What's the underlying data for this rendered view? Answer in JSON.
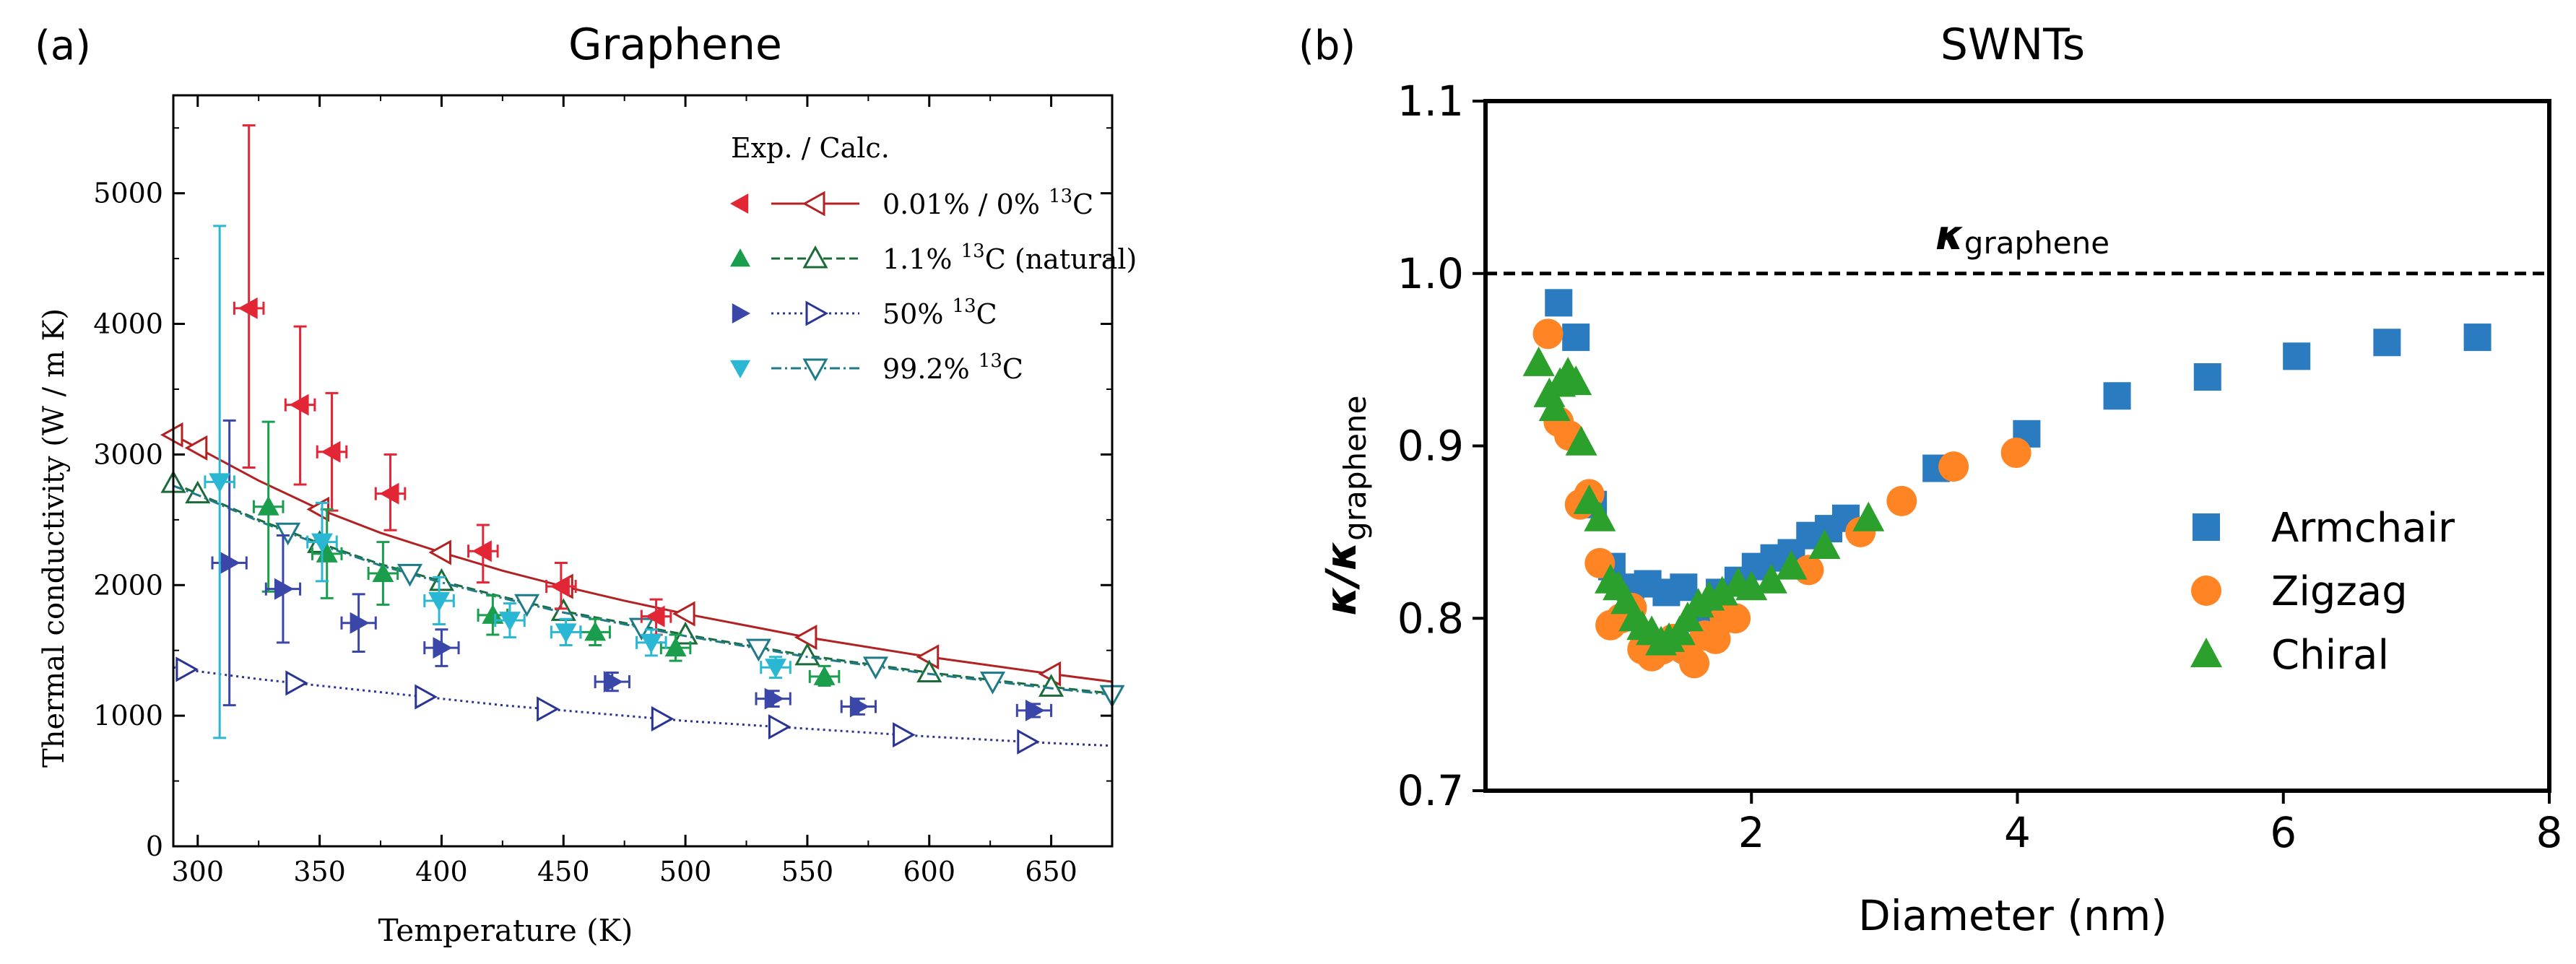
{
  "colors": {
    "natural_exp": "#1a9e4e",
    "natural_calc": "#1a6b37",
    "zero_exp": "#e32636",
    "zero_calc": "#b22222",
    "fifty_exp": "#3a46a8",
    "fifty_calc": "#2a3494",
    "enriched_exp": "#2ab7d3",
    "enriched_calc": "#1f7a88",
    "armchair": "#2a7bbf",
    "zigzag": "#ff8424",
    "chiral": "#2ca02c",
    "axes": "#000000"
  },
  "chart_data": [
    {
      "type": "scatter",
      "panel_label": "(a)",
      "title": "Graphene",
      "xlabel": "Temperature (K)",
      "ylabel": "Thermal conductivity (W / m K)",
      "xlim": [
        290,
        675
      ],
      "ylim": [
        0,
        5750
      ],
      "xticks": [
        300,
        350,
        400,
        450,
        500,
        550,
        600,
        650
      ],
      "yticks": [
        0,
        1000,
        2000,
        3000,
        4000,
        5000
      ],
      "legend": {
        "title": "Exp. / Calc.",
        "entries": [
          {
            "label": "0.01% / 0% ",
            "sup": "13",
            "suffix": "C",
            "key": "zero"
          },
          {
            "label": "1.1% ",
            "sup": "13",
            "suffix": "C (natural)",
            "key": "natural"
          },
          {
            "label": "50% ",
            "sup": "13",
            "suffix": "C",
            "key": "fifty"
          },
          {
            "label": "99.2% ",
            "sup": "13",
            "suffix": "C",
            "key": "enriched"
          }
        ]
      },
      "experiment": {
        "zero": [
          {
            "x": 321,
            "y": 4120,
            "xe": 6,
            "ylo": 2900,
            "yhi": 5520
          },
          {
            "x": 342,
            "y": 3380,
            "xe": 6,
            "ylo": 2770,
            "yhi": 3980
          },
          {
            "x": 355,
            "y": 3020,
            "xe": 6,
            "ylo": 2570,
            "yhi": 3470
          },
          {
            "x": 379,
            "y": 2700,
            "xe": 6,
            "ylo": 2420,
            "yhi": 3000
          },
          {
            "x": 417,
            "y": 2260,
            "xe": 6,
            "ylo": 2020,
            "yhi": 2460
          },
          {
            "x": 449,
            "y": 1990,
            "xe": 6,
            "ylo": 1820,
            "yhi": 2170
          },
          {
            "x": 488,
            "y": 1760,
            "xe": 6,
            "ylo": 1620,
            "yhi": 1890
          }
        ],
        "natural": [
          {
            "x": 329,
            "y": 2600,
            "xe": 6,
            "ylo": 1950,
            "yhi": 3250
          },
          {
            "x": 353,
            "y": 2240,
            "xe": 6,
            "ylo": 1900,
            "yhi": 2580
          },
          {
            "x": 376,
            "y": 2090,
            "xe": 6,
            "ylo": 1850,
            "yhi": 2330
          },
          {
            "x": 421,
            "y": 1770,
            "xe": 6,
            "ylo": 1620,
            "yhi": 1920
          },
          {
            "x": 463,
            "y": 1640,
            "xe": 6,
            "ylo": 1540,
            "yhi": 1740
          },
          {
            "x": 496,
            "y": 1520,
            "xe": 6,
            "ylo": 1420,
            "yhi": 1620
          },
          {
            "x": 557,
            "y": 1300,
            "xe": 6,
            "ylo": 1230,
            "yhi": 1380
          }
        ],
        "fifty": [
          {
            "x": 313,
            "y": 2170,
            "xe": 7,
            "ylo": 1080,
            "yhi": 3260
          },
          {
            "x": 335,
            "y": 1970,
            "xe": 7,
            "ylo": 1560,
            "yhi": 2380
          },
          {
            "x": 366,
            "y": 1710,
            "xe": 7,
            "ylo": 1490,
            "yhi": 1930
          },
          {
            "x": 400,
            "y": 1520,
            "xe": 7,
            "ylo": 1380,
            "yhi": 1660
          },
          {
            "x": 470,
            "y": 1260,
            "xe": 7,
            "ylo": 1190,
            "yhi": 1330
          },
          {
            "x": 536,
            "y": 1130,
            "xe": 7,
            "ylo": 1070,
            "yhi": 1190
          },
          {
            "x": 571,
            "y": 1070,
            "xe": 7,
            "ylo": 1010,
            "yhi": 1130
          },
          {
            "x": 643,
            "y": 1040,
            "xe": 7,
            "ylo": 990,
            "yhi": 1090
          }
        ],
        "enriched": [
          {
            "x": 309,
            "y": 2790,
            "xe": 6,
            "ylo": 830,
            "yhi": 4750
          },
          {
            "x": 351,
            "y": 2330,
            "xe": 6,
            "ylo": 2030,
            "yhi": 2630
          },
          {
            "x": 399,
            "y": 1880,
            "xe": 6,
            "ylo": 1700,
            "yhi": 2060
          },
          {
            "x": 428,
            "y": 1730,
            "xe": 6,
            "ylo": 1600,
            "yhi": 1860
          },
          {
            "x": 451,
            "y": 1640,
            "xe": 6,
            "ylo": 1540,
            "yhi": 1740
          },
          {
            "x": 486,
            "y": 1560,
            "xe": 6,
            "ylo": 1460,
            "yhi": 1660
          },
          {
            "x": 537,
            "y": 1370,
            "xe": 6,
            "ylo": 1290,
            "yhi": 1450
          }
        ]
      },
      "calculation": {
        "zero": {
          "x": [
            290,
            300,
            325,
            350,
            375,
            400,
            425,
            450,
            475,
            500,
            550,
            600,
            650,
            675
          ],
          "y": [
            3150,
            3050,
            2800,
            2580,
            2400,
            2250,
            2110,
            1990,
            1880,
            1780,
            1600,
            1450,
            1320,
            1260
          ],
          "markers_x": [
            290,
            300,
            350,
            400,
            450,
            500,
            550,
            600,
            650
          ]
        },
        "natural": {
          "x": [
            290,
            300,
            325,
            350,
            375,
            400,
            425,
            450,
            475,
            500,
            550,
            600,
            650,
            675
          ],
          "y": [
            2780,
            2700,
            2500,
            2320,
            2160,
            2030,
            1910,
            1800,
            1710,
            1620,
            1460,
            1330,
            1220,
            1170
          ],
          "markers_x": [
            290,
            300,
            350,
            400,
            450,
            500,
            550,
            600,
            650
          ]
        },
        "fifty": {
          "x": [
            290,
            300,
            325,
            350,
            375,
            400,
            425,
            450,
            475,
            500,
            550,
            600,
            650,
            675
          ],
          "y": [
            1370,
            1340,
            1280,
            1230,
            1180,
            1130,
            1080,
            1040,
            1000,
            960,
            900,
            840,
            790,
            770
          ],
          "markers_x": [
            295,
            340,
            393,
            443,
            490,
            538,
            589,
            640
          ]
        },
        "enriched": {
          "x": [
            290,
            300,
            325,
            350,
            375,
            400,
            425,
            450,
            475,
            500,
            550,
            600,
            650,
            675
          ],
          "y": [
            2760,
            2690,
            2490,
            2310,
            2150,
            2020,
            1900,
            1790,
            1700,
            1610,
            1450,
            1320,
            1210,
            1160
          ],
          "markers_x": [
            337,
            387,
            435,
            482,
            530,
            578,
            626,
            675
          ]
        }
      }
    },
    {
      "type": "scatter",
      "panel_label": "(b)",
      "title": "SWNTs",
      "xlabel": "Diameter (nm)",
      "ylabel_main": "κ/κ",
      "ylabel_sub": "graphene",
      "reference_label_main": "κ",
      "reference_label_sub": "graphene",
      "reference_y": 1.0,
      "xlim": [
        0,
        8
      ],
      "ylim": [
        0.7,
        1.1
      ],
      "xticks": [
        2,
        4,
        6,
        8
      ],
      "yticks": [
        0.7,
        0.8,
        0.9,
        1.0,
        1.1
      ],
      "ytick_labels": [
        "0.7",
        "0.8",
        "0.9",
        "1.0",
        "1.1"
      ],
      "series": [
        {
          "name": "Armchair",
          "key": "armchair",
          "marker": "square",
          "x": [
            0.55,
            0.68,
            0.81,
            0.95,
            1.09,
            1.22,
            1.36,
            1.49,
            1.63,
            1.76,
            1.9,
            2.03,
            2.17,
            2.3,
            2.44,
            2.58,
            2.71,
            3.39,
            4.07,
            4.75,
            5.43,
            6.1,
            6.78,
            7.46
          ],
          "y": [
            0.983,
            0.963,
            0.866,
            0.83,
            0.818,
            0.82,
            0.815,
            0.818,
            0.8,
            0.815,
            0.822,
            0.83,
            0.835,
            0.838,
            0.848,
            0.852,
            0.858,
            0.887,
            0.907,
            0.929,
            0.94,
            0.952,
            0.96,
            0.963
          ]
        },
        {
          "name": "Zigzag",
          "key": "zigzag",
          "marker": "circle",
          "x": [
            0.47,
            0.55,
            0.63,
            0.71,
            0.78,
            0.86,
            0.94,
            1.02,
            1.1,
            1.18,
            1.25,
            1.33,
            1.41,
            1.49,
            1.57,
            1.65,
            1.73,
            1.8,
            1.88,
            2.43,
            2.82,
            3.13,
            3.52,
            3.99
          ],
          "y": [
            0.965,
            0.914,
            0.906,
            0.866,
            0.872,
            0.832,
            0.796,
            0.8,
            0.806,
            0.782,
            0.778,
            0.782,
            0.788,
            0.782,
            0.774,
            0.79,
            0.788,
            0.8,
            0.8,
            0.828,
            0.85,
            0.868,
            0.888,
            0.896
          ]
        },
        {
          "name": "Chiral",
          "key": "chiral",
          "marker": "triangle",
          "x": [
            0.4,
            0.48,
            0.52,
            0.56,
            0.62,
            0.68,
            0.72,
            0.78,
            0.86,
            0.94,
            1.0,
            1.06,
            1.12,
            1.18,
            1.25,
            1.32,
            1.38,
            1.46,
            1.52,
            1.6,
            1.68,
            1.78,
            1.9,
            2.0,
            2.15,
            2.3,
            2.55,
            2.88
          ],
          "y": [
            0.948,
            0.93,
            0.922,
            0.936,
            0.942,
            0.937,
            0.902,
            0.868,
            0.858,
            0.822,
            0.818,
            0.81,
            0.8,
            0.795,
            0.792,
            0.786,
            0.788,
            0.792,
            0.8,
            0.808,
            0.812,
            0.815,
            0.82,
            0.818,
            0.822,
            0.83,
            0.842,
            0.858
          ]
        }
      ]
    }
  ]
}
